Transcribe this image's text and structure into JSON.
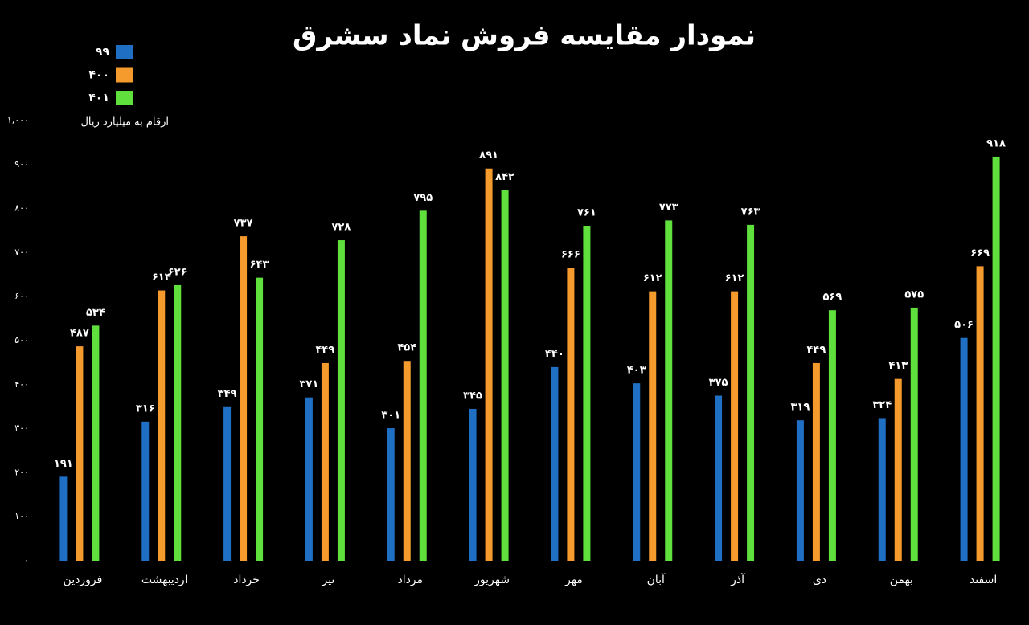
{
  "chart_data": {
    "type": "bar",
    "title": "نمودار مقایسه فروش نماد سشرق",
    "subtitle": "ارقام به میلیارد ریال",
    "categories": [
      "فروردین",
      "اردیبهشت",
      "خرداد",
      "تیر",
      "مرداد",
      "شهریور",
      "مهر",
      "آبان",
      "آذر",
      "دی",
      "بهمن",
      "اسفند"
    ],
    "series": [
      {
        "name": "۹۹",
        "color": "#1f6fc4",
        "values": [
          191,
          316,
          349,
          371,
          301,
          345,
          440,
          403,
          375,
          319,
          324,
          506
        ],
        "value_labels": [
          "۱۹۱",
          "۳۱۶",
          "۳۴۹",
          "۳۷۱",
          "۳۰۱",
          "۳۴۵",
          "۴۴۰",
          "۴۰۳",
          "۳۷۵",
          "۳۱۹",
          "۳۲۴",
          "۵۰۶"
        ]
      },
      {
        "name": "۴۰۰",
        "color": "#f59a2c",
        "values": [
          487,
          614,
          737,
          449,
          454,
          891,
          666,
          612,
          612,
          449,
          413,
          669
        ],
        "value_labels": [
          "۴۸۷",
          "۶۱۴",
          "۷۳۷",
          "۴۴۹",
          "۴۵۴",
          "۸۹۱",
          "۶۶۶",
          "۶۱۲",
          "۶۱۲",
          "۴۴۹",
          "۴۱۳",
          "۶۶۹"
        ]
      },
      {
        "name": "۴۰۱",
        "color": "#5fe03c",
        "values": [
          534,
          626,
          643,
          728,
          795,
          842,
          761,
          773,
          763,
          569,
          575,
          918
        ],
        "value_labels": [
          "۵۳۴",
          "۶۲۶",
          "۶۴۳",
          "۷۲۸",
          "۷۹۵",
          "۸۴۲",
          "۷۶۱",
          "۷۷۳",
          "۷۶۳",
          "۵۶۹",
          "۵۷۵",
          "۹۱۸"
        ]
      }
    ],
    "ylim": [
      0,
      1000
    ],
    "yticks": [
      {
        "value": 0,
        "label": "۰"
      },
      {
        "value": 100,
        "label": "۱۰۰"
      },
      {
        "value": 200,
        "label": "۲۰۰"
      },
      {
        "value": 300,
        "label": "۳۰۰"
      },
      {
        "value": 400,
        "label": "۴۰۰"
      },
      {
        "value": 500,
        "label": "۵۰۰"
      },
      {
        "value": 600,
        "label": "۶۰۰"
      },
      {
        "value": 700,
        "label": "۷۰۰"
      },
      {
        "value": 800,
        "label": "۸۰۰"
      },
      {
        "value": 900,
        "label": "۹۰۰"
      },
      {
        "value": 1000,
        "label": "۱,۰۰۰"
      }
    ],
    "grid": false,
    "legend": "top-left"
  }
}
